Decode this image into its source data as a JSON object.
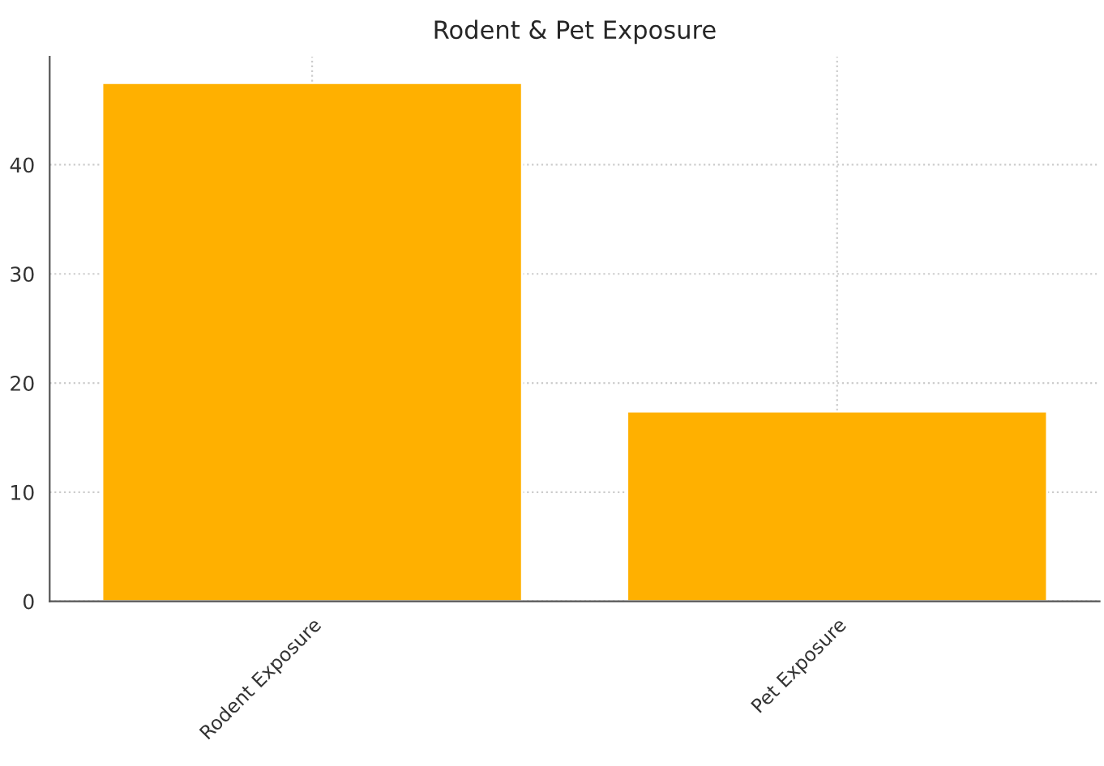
{
  "chart_data": {
    "type": "bar",
    "title": "Rodent & Pet Exposure",
    "categories": [
      "Rodent Exposure",
      "Pet Exposure"
    ],
    "values": [
      47.5,
      17.4
    ],
    "color": "#ffb000",
    "ylim": [
      0,
      49.9
    ],
    "yticks": [
      0,
      10,
      20,
      30,
      40
    ],
    "grid": true
  }
}
